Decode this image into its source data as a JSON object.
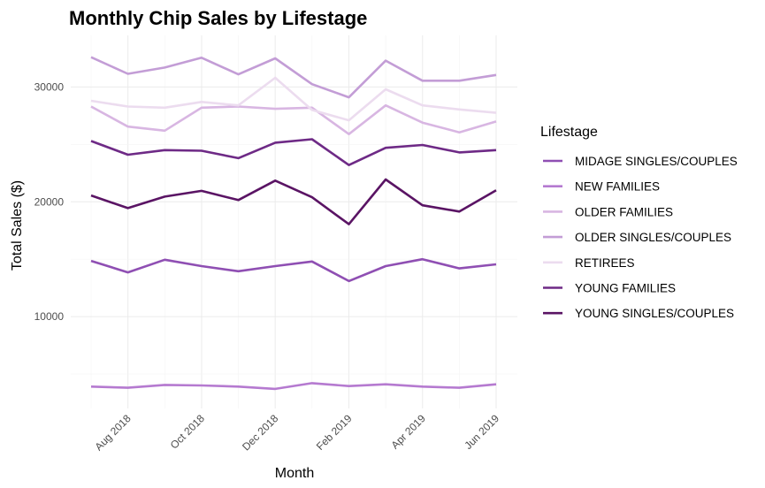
{
  "chart_data": {
    "type": "line",
    "title": "Monthly Chip Sales by Lifestage",
    "xlabel": "Month",
    "ylabel": "Total Sales ($)",
    "x": [
      "2018-07",
      "2018-08",
      "2018-09",
      "2018-10",
      "2018-11",
      "2018-12",
      "2019-01",
      "2019-02",
      "2019-03",
      "2019-04",
      "2019-05",
      "2019-06"
    ],
    "x_ticks": [
      {
        "month": "2018-08",
        "label": "Aug 2018"
      },
      {
        "month": "2018-10",
        "label": "Oct 2018"
      },
      {
        "month": "2018-12",
        "label": "Dec 2018"
      },
      {
        "month": "2019-02",
        "label": "Feb 2019"
      },
      {
        "month": "2019-04",
        "label": "Apr 2019"
      },
      {
        "month": "2019-06",
        "label": "Jun 2019"
      }
    ],
    "y_ticks": [
      10000,
      20000,
      30000
    ],
    "ylim": [
      2000,
      34500
    ],
    "grid": true,
    "legend_title": "Lifestage",
    "legend_position": "right",
    "series": [
      {
        "name": "MIDAGE SINGLES/COUPLES",
        "color": "#8f4fb3",
        "values": [
          14850,
          13850,
          14950,
          14400,
          13950,
          14400,
          14800,
          13100,
          14400,
          15000,
          14200,
          14550
        ]
      },
      {
        "name": "NEW FAMILIES",
        "color": "#b57ad0",
        "values": [
          3900,
          3800,
          4050,
          4000,
          3900,
          3700,
          4200,
          3950,
          4100,
          3900,
          3800,
          4100
        ]
      },
      {
        "name": "OLDER FAMILIES",
        "color": "#d8b6e2",
        "values": [
          28300,
          26550,
          26200,
          28200,
          28300,
          28100,
          28200,
          25900,
          28400,
          26900,
          26050,
          27000
        ]
      },
      {
        "name": "OLDER SINGLES/COUPLES",
        "color": "#c39dd6",
        "values": [
          32600,
          31150,
          31700,
          32550,
          31100,
          32500,
          30250,
          29100,
          32300,
          30550,
          30550,
          31050
        ]
      },
      {
        "name": "RETIREES",
        "color": "#ecdcef",
        "values": [
          28800,
          28300,
          28200,
          28700,
          28400,
          30800,
          28000,
          27100,
          29800,
          28400,
          28050,
          27750
        ]
      },
      {
        "name": "YOUNG FAMILIES",
        "color": "#6e2a86",
        "values": [
          25300,
          24100,
          24500,
          24450,
          23800,
          25150,
          25450,
          23200,
          24700,
          24950,
          24300,
          24500
        ]
      },
      {
        "name": "YOUNG SINGLES/COUPLES",
        "color": "#5a1464",
        "values": [
          20550,
          19450,
          20450,
          20950,
          20150,
          21850,
          20400,
          18050,
          21950,
          19700,
          19150,
          21000
        ]
      }
    ]
  }
}
